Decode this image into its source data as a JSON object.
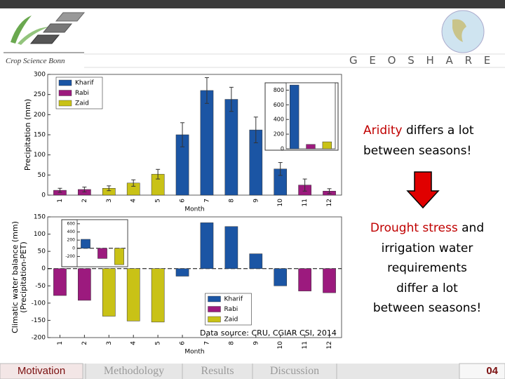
{
  "header": {
    "logo_text": "Crop Science Bonn",
    "brand": "G E O S H A R E"
  },
  "chart_data": [
    {
      "type": "bar",
      "xlabel": "Month",
      "ylabel": [
        "Precipitation (mm)"
      ],
      "categories": [
        "1",
        "2",
        "3",
        "4",
        "5",
        "6",
        "7",
        "8",
        "9",
        "10",
        "11",
        "12"
      ],
      "series": [
        {
          "name": "Kharif",
          "color": "#1b55a4",
          "values": [
            null,
            null,
            null,
            null,
            null,
            150,
            260,
            238,
            162,
            65,
            null,
            null
          ],
          "errors": [
            null,
            null,
            null,
            null,
            null,
            30,
            32,
            30,
            32,
            16,
            null,
            null
          ]
        },
        {
          "name": "Rabi",
          "color": "#9c1a7e",
          "values": [
            12,
            14,
            null,
            null,
            null,
            null,
            null,
            null,
            null,
            null,
            25,
            10
          ],
          "errors": [
            5,
            6,
            null,
            null,
            null,
            null,
            null,
            null,
            null,
            null,
            15,
            6
          ]
        },
        {
          "name": "Zaid",
          "color": "#c9c216",
          "values": [
            null,
            null,
            17,
            30,
            52,
            null,
            null,
            null,
            null,
            null,
            null,
            null
          ],
          "errors": [
            null,
            null,
            6,
            8,
            12,
            null,
            null,
            null,
            null,
            null,
            null,
            null
          ]
        }
      ],
      "ylim": [
        0,
        300
      ],
      "yticks": [
        0,
        50,
        100,
        150,
        200,
        250,
        300
      ],
      "legend": "upper left"
    },
    {
      "type": "bar",
      "categories": [
        null,
        null,
        null
      ],
      "values": [
        870,
        60,
        95
      ],
      "colors": [
        "#1b55a4",
        "#9c1a7e",
        "#c9c216"
      ],
      "ylim": [
        0,
        900
      ],
      "yticks": [
        0,
        200,
        400,
        600,
        800
      ]
    },
    {
      "type": "bar",
      "xlabel": "Month",
      "ylabel": [
        "Climatic water balance (mm)",
        "(Precipitation-PET)"
      ],
      "categories": [
        "1",
        "2",
        "3",
        "4",
        "5",
        "6",
        "7",
        "8",
        "9",
        "10",
        "11",
        "12"
      ],
      "series": [
        {
          "name": "Kharif",
          "color": "#1b55a4",
          "values": [
            null,
            null,
            null,
            null,
            null,
            -22,
            133,
            122,
            43,
            -50,
            null,
            null
          ]
        },
        {
          "name": "Rabi",
          "color": "#9c1a7e",
          "values": [
            -78,
            -92,
            null,
            null,
            null,
            null,
            null,
            null,
            null,
            null,
            -65,
            -70
          ]
        },
        {
          "name": "Zaid",
          "color": "#c9c216",
          "values": [
            null,
            null,
            -138,
            -152,
            -155,
            null,
            null,
            null,
            null,
            null,
            null,
            null
          ]
        }
      ],
      "ylim": [
        -200,
        150
      ],
      "yticks": [
        -200,
        -150,
        -100,
        -50,
        0,
        50,
        100,
        150
      ],
      "legend": "lower center",
      "zero_line": true
    },
    {
      "type": "bar",
      "categories": [
        null,
        null,
        null
      ],
      "values": [
        220,
        -250,
        -400
      ],
      "colors": [
        "#1b55a4",
        "#9c1a7e",
        "#c9c216"
      ],
      "ylim": [
        -450,
        700
      ],
      "yticks": [
        -200,
        0,
        200,
        400,
        600
      ],
      "zero_line": true
    }
  ],
  "source": "Data source: CRU, CGIAR CSI, 2014",
  "notes": [
    [
      [
        {
          "text": "Aridity",
          "color": "#c00000"
        },
        {
          "text": " differs a lot"
        }
      ],
      [
        {
          "text": "between seasons!"
        }
      ]
    ],
    [
      [
        {
          "text": "Drought stress",
          "color": "#c00000"
        },
        {
          "text": " and"
        }
      ],
      [
        {
          "text": "irrigation water"
        }
      ],
      [
        {
          "text": "requirements"
        }
      ],
      [
        {
          "text": "differ a lot"
        }
      ],
      [
        {
          "text": "between seasons!"
        }
      ]
    ]
  ],
  "nav": {
    "items": [
      "Motivation",
      "Methodology",
      "Results",
      "Discussion"
    ],
    "active": 0,
    "page": "04"
  }
}
